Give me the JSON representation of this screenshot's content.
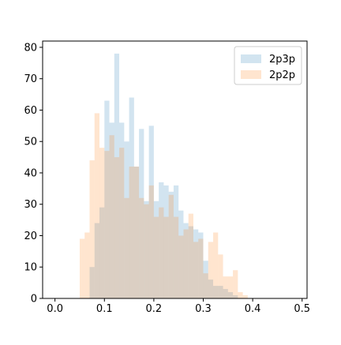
{
  "chart_data": {
    "type": "histogram",
    "xlim": [
      -0.025,
      0.51
    ],
    "ylim": [
      0,
      82
    ],
    "xticks": [
      0.0,
      0.1,
      0.2,
      0.3,
      0.4,
      0.5
    ],
    "xtick_labels": [
      "0.0",
      "0.1",
      "0.2",
      "0.3",
      "0.4",
      "0.5"
    ],
    "yticks": [
      0,
      10,
      20,
      30,
      40,
      50,
      60,
      70,
      80
    ],
    "ytick_labels": [
      "0",
      "10",
      "20",
      "30",
      "40",
      "50",
      "60",
      "70",
      "80"
    ],
    "title": "",
    "xlabel": "",
    "ylabel": "",
    "grid": false,
    "legend_position": "upper right",
    "bin_width": 0.01,
    "series": [
      {
        "name": "2p3p",
        "color": "#1f77b4",
        "opacity": 0.2,
        "bin_edges": [
          0.07,
          0.08,
          0.09,
          0.1,
          0.11,
          0.12,
          0.13,
          0.14,
          0.15,
          0.16,
          0.17,
          0.18,
          0.19,
          0.2,
          0.21,
          0.22,
          0.23,
          0.24,
          0.25,
          0.26,
          0.27,
          0.28,
          0.29,
          0.3,
          0.31,
          0.32,
          0.33,
          0.34,
          0.35,
          0.36,
          0.37
        ],
        "counts": [
          10,
          24,
          29,
          63,
          56,
          78,
          56,
          50,
          64,
          42,
          54,
          31,
          55,
          31,
          37,
          36,
          34,
          36,
          28,
          24,
          23,
          22,
          21,
          12,
          6,
          4,
          4,
          3,
          2,
          1
        ]
      },
      {
        "name": "2p2p",
        "color": "#ff7f0e",
        "opacity": 0.2,
        "bin_edges": [
          0.05,
          0.06,
          0.07,
          0.08,
          0.09,
          0.1,
          0.11,
          0.12,
          0.13,
          0.14,
          0.15,
          0.16,
          0.17,
          0.18,
          0.19,
          0.2,
          0.21,
          0.22,
          0.23,
          0.24,
          0.25,
          0.26,
          0.27,
          0.28,
          0.29,
          0.3,
          0.31,
          0.32,
          0.33,
          0.34,
          0.35,
          0.36,
          0.37,
          0.38,
          0.39,
          0.4
        ],
        "counts": [
          19,
          21,
          44,
          59,
          48,
          47,
          52,
          45,
          48,
          32,
          42,
          42,
          32,
          30,
          36,
          26,
          29,
          26,
          33,
          26,
          20,
          22,
          27,
          18,
          19,
          8,
          18,
          21,
          14,
          7,
          7,
          9,
          2,
          1,
          0
        ]
      }
    ]
  }
}
